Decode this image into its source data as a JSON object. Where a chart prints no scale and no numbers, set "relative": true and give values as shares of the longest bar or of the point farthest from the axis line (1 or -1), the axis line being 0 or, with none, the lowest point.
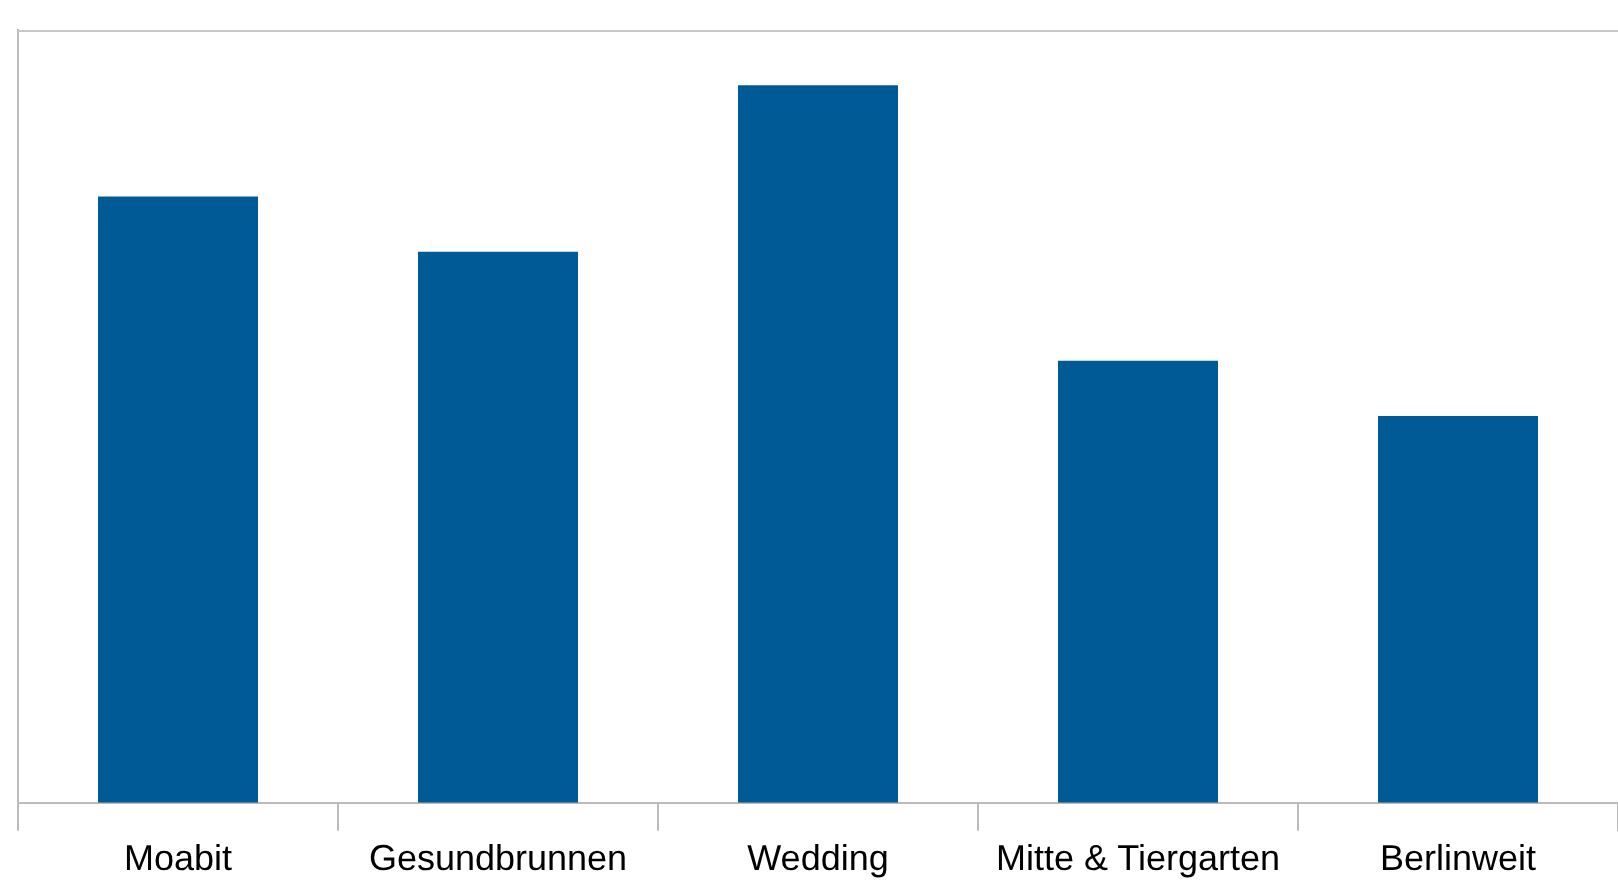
{
  "chart_data": {
    "type": "bar",
    "categories": [
      "Moabit",
      "Gesundbrunnen",
      "Wedding",
      "Mitte & Tiergarten",
      "Berlinweit"
    ],
    "values": [
      0.845,
      0.768,
      1,
      0.616,
      0.539
    ],
    "color": "#005a96",
    "relative": true,
    "grid": false,
    "legend": false
  }
}
